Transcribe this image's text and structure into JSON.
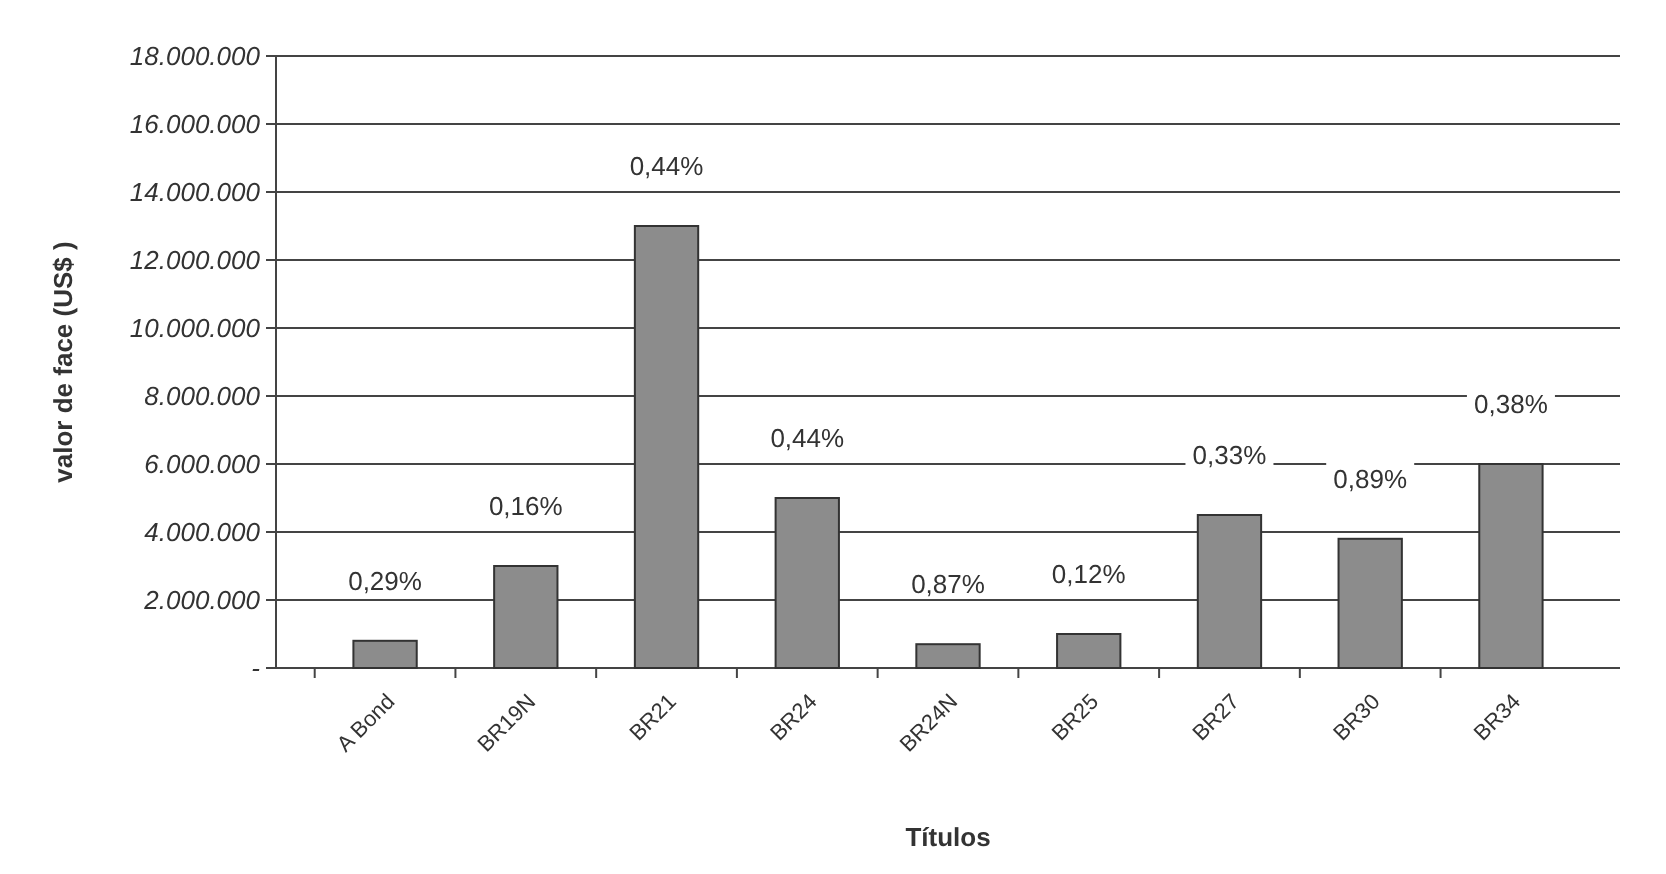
{
  "chart_data": {
    "type": "bar",
    "xlabel": "Títulos",
    "ylabel": "valor de face (US$ )",
    "categories": [
      "A Bond",
      "BR19N",
      "BR21",
      "BR24",
      "BR24N",
      "BR25",
      "BR27",
      "BR30",
      "BR34"
    ],
    "values": [
      800000,
      3000000,
      13000000,
      5000000,
      700000,
      1000000,
      4500000,
      3800000,
      6000000
    ],
    "color": "#8c8c8c",
    "ylim": [
      0,
      18000000
    ],
    "yticks": [
      {
        "value": 0,
        "label": "-"
      },
      {
        "value": 2000000,
        "label": "2.000.000"
      },
      {
        "value": 4000000,
        "label": "4.000.000"
      },
      {
        "value": 6000000,
        "label": "6.000.000"
      },
      {
        "value": 8000000,
        "label": "8.000.000"
      },
      {
        "value": 10000000,
        "label": "10.000.000"
      },
      {
        "value": 12000000,
        "label": "12.000.000"
      },
      {
        "value": 14000000,
        "label": "14.000.000"
      },
      {
        "value": 16000000,
        "label": "16.000.000"
      },
      {
        "value": 18000000,
        "label": "18.000.000"
      }
    ],
    "grid": true,
    "annotations": [
      "0,29%",
      "0,16%",
      "0,44%",
      "0,44%",
      "0,87%",
      "0,12%",
      "0,33%",
      "0,89%",
      "0,38%"
    ]
  }
}
